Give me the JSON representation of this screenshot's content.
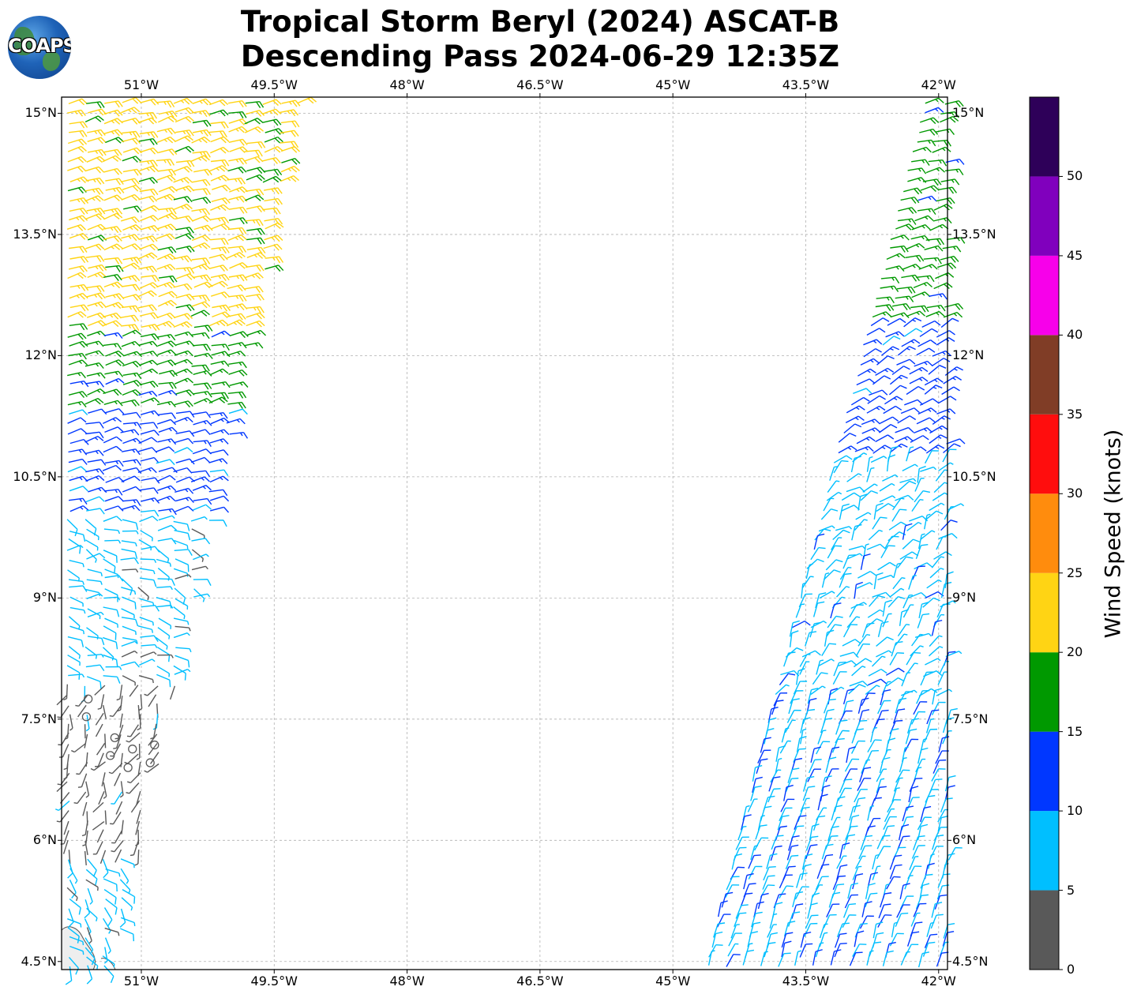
{
  "title": {
    "line1": "Tropical Storm Beryl (2024) ASCAT-B",
    "line2": "Descending Pass 2024-06-29 12:35Z"
  },
  "logo": {
    "text": "COAPS",
    "icon": "globe-icon"
  },
  "map": {
    "lon_range": [
      -51.9,
      -41.9
    ],
    "lat_range": [
      4.4,
      15.2
    ],
    "lon_ticks": [
      {
        "value": -51.0,
        "label": "51°W"
      },
      {
        "value": -49.5,
        "label": "49.5°W"
      },
      {
        "value": -48.0,
        "label": "48°W"
      },
      {
        "value": -46.5,
        "label": "46.5°W"
      },
      {
        "value": -45.0,
        "label": "45°W"
      },
      {
        "value": -43.5,
        "label": "43.5°W"
      },
      {
        "value": -42.0,
        "label": "42°W"
      }
    ],
    "lat_ticks": [
      {
        "value": 15.0,
        "label": "15°N"
      },
      {
        "value": 13.5,
        "label": "13.5°N"
      },
      {
        "value": 12.0,
        "label": "12°N"
      },
      {
        "value": 10.5,
        "label": "10.5°N"
      },
      {
        "value": 9.0,
        "label": "9°N"
      },
      {
        "value": 7.5,
        "label": "7.5°N"
      },
      {
        "value": 6.0,
        "label": "6°N"
      },
      {
        "value": 4.5,
        "label": "4.5°N"
      }
    ],
    "gridlines": true,
    "colors": {
      "grid": "#b0b0b0",
      "frame": "#000000",
      "coast": "#555555"
    }
  },
  "chart_data": {
    "type": "wind-barbs",
    "swaths": [
      {
        "name": "",
        "lat_range": [
          4.4,
          15.2
        ],
        "west_edge_lon": [
          -51.9,
          -51.9
        ],
        "east_edge_lon": [
          -51.3,
          -49.2
        ]
      },
      {
        "name": "",
        "lat_range": [
          4.4,
          15.2
        ],
        "west_edge_lon": [
          -44.7,
          -42.2
        ],
        "east_edge_lon": [
          -41.9,
          -41.9
        ]
      }
    ],
    "speed_regions": [
      {
        "swath": 0,
        "lat_min": 12.3,
        "lat_max": 15.2,
        "speed_kt": 22,
        "dir_deg": 75,
        "note": "mix of 15-20 and 20-25 kt"
      },
      {
        "swath": 0,
        "lat_min": 11.3,
        "lat_max": 12.3,
        "speed_kt": 17,
        "dir_deg": 75
      },
      {
        "swath": 0,
        "lat_min": 10.0,
        "lat_max": 11.3,
        "speed_kt": 12,
        "dir_deg": 75
      },
      {
        "swath": 0,
        "lat_min": 8.0,
        "lat_max": 10.0,
        "speed_kt": 7,
        "dir_deg": 100
      },
      {
        "swath": 0,
        "lat_min": 5.8,
        "lat_max": 8.0,
        "speed_kt": 3,
        "dir_deg": 200
      },
      {
        "swath": 0,
        "lat_min": 4.4,
        "lat_max": 5.8,
        "speed_kt": 7,
        "dir_deg": 140
      },
      {
        "swath": 1,
        "lat_min": 12.4,
        "lat_max": 15.2,
        "speed_kt": 17,
        "dir_deg": 75
      },
      {
        "swath": 1,
        "lat_min": 10.8,
        "lat_max": 12.4,
        "speed_kt": 12,
        "dir_deg": 60
      },
      {
        "swath": 1,
        "lat_min": 7.8,
        "lat_max": 10.8,
        "speed_kt": 8,
        "dir_deg": 40
      },
      {
        "swath": 1,
        "lat_min": 4.4,
        "lat_max": 7.8,
        "speed_kt": 9,
        "dir_deg": 20
      }
    ],
    "calm_points": [
      {
        "lon": -51.6,
        "lat": 7.75
      },
      {
        "lon": -51.62,
        "lat": 7.53
      },
      {
        "lon": -51.3,
        "lat": 7.27
      },
      {
        "lon": -51.1,
        "lat": 7.13
      },
      {
        "lon": -50.85,
        "lat": 7.18
      },
      {
        "lon": -51.35,
        "lat": 7.05
      },
      {
        "lon": -51.15,
        "lat": 6.9
      },
      {
        "lon": -50.9,
        "lat": 6.96
      }
    ]
  },
  "colorbar": {
    "label": "Wind Speed (knots)",
    "range": [
      0,
      55
    ],
    "bins": [
      {
        "from": 0,
        "to": 5,
        "color": "#595959"
      },
      {
        "from": 5,
        "to": 10,
        "color": "#00bfff"
      },
      {
        "from": 10,
        "to": 15,
        "color": "#0037ff"
      },
      {
        "from": 15,
        "to": 20,
        "color": "#009900"
      },
      {
        "from": 20,
        "to": 25,
        "color": "#ffd414"
      },
      {
        "from": 25,
        "to": 30,
        "color": "#ff8c0d"
      },
      {
        "from": 30,
        "to": 35,
        "color": "#ff0d0d"
      },
      {
        "from": 35,
        "to": 40,
        "color": "#803d26"
      },
      {
        "from": 40,
        "to": 45,
        "color": "#f700ea"
      },
      {
        "from": 45,
        "to": 50,
        "color": "#8000bd"
      },
      {
        "from": 50,
        "to": 55,
        "color": "#2e0059"
      }
    ],
    "tick_labels": [
      "0",
      "5",
      "10",
      "15",
      "20",
      "25",
      "30",
      "35",
      "40",
      "45",
      "50"
    ]
  }
}
